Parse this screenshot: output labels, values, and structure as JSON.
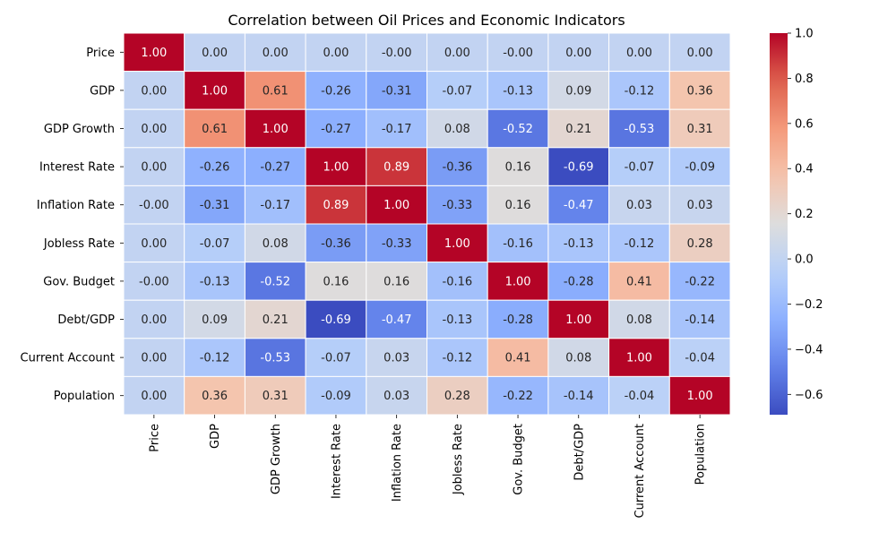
{
  "chart_data": {
    "type": "heatmap",
    "title": "Correlation between Oil Prices and Economic Indicators",
    "row_labels": [
      "Price",
      "GDP",
      "GDP Growth",
      "Interest Rate",
      "Inflation Rate",
      "Jobless Rate",
      "Gov. Budget",
      "Debt/GDP",
      "Current Account",
      "Population"
    ],
    "col_labels": [
      "Price",
      "GDP",
      "GDP Growth",
      "Interest Rate",
      "Inflation Rate",
      "Jobless Rate",
      "Gov. Budget",
      "Debt/GDP",
      "Current Account",
      "Population"
    ],
    "values": [
      [
        1.0,
        0.0,
        0.0,
        0.0,
        -0.0,
        0.0,
        -0.0,
        0.0,
        0.0,
        0.0
      ],
      [
        0.0,
        1.0,
        0.61,
        -0.26,
        -0.31,
        -0.07,
        -0.13,
        0.09,
        -0.12,
        0.36
      ],
      [
        0.0,
        0.61,
        1.0,
        -0.27,
        -0.17,
        0.08,
        -0.52,
        0.21,
        -0.53,
        0.31
      ],
      [
        0.0,
        -0.26,
        -0.27,
        1.0,
        0.89,
        -0.36,
        0.16,
        -0.69,
        -0.07,
        -0.09
      ],
      [
        -0.0,
        -0.31,
        -0.17,
        0.89,
        1.0,
        -0.33,
        0.16,
        -0.47,
        0.03,
        0.03
      ],
      [
        0.0,
        -0.07,
        0.08,
        -0.36,
        -0.33,
        1.0,
        -0.16,
        -0.13,
        -0.12,
        0.28
      ],
      [
        -0.0,
        -0.13,
        -0.52,
        0.16,
        0.16,
        -0.16,
        1.0,
        -0.28,
        0.41,
        -0.22
      ],
      [
        0.0,
        0.09,
        0.21,
        -0.69,
        -0.47,
        -0.13,
        -0.28,
        1.0,
        0.08,
        -0.14
      ],
      [
        0.0,
        -0.12,
        -0.53,
        -0.07,
        0.03,
        -0.12,
        0.41,
        0.08,
        1.0,
        -0.04
      ],
      [
        0.0,
        0.36,
        0.31,
        -0.09,
        0.03,
        0.28,
        -0.22,
        -0.14,
        -0.04,
        1.0
      ]
    ],
    "value_labels": [
      [
        "1.00",
        "0.00",
        "0.00",
        "0.00",
        "-0.00",
        "0.00",
        "-0.00",
        "0.00",
        "0.00",
        "0.00"
      ],
      [
        "0.00",
        "1.00",
        "0.61",
        "-0.26",
        "-0.31",
        "-0.07",
        "-0.13",
        "0.09",
        "-0.12",
        "0.36"
      ],
      [
        "0.00",
        "0.61",
        "1.00",
        "-0.27",
        "-0.17",
        "0.08",
        "-0.52",
        "0.21",
        "-0.53",
        "0.31"
      ],
      [
        "0.00",
        "-0.26",
        "-0.27",
        "1.00",
        "0.89",
        "-0.36",
        "0.16",
        "-0.69",
        "-0.07",
        "-0.09"
      ],
      [
        "-0.00",
        "-0.31",
        "-0.17",
        "0.89",
        "1.00",
        "-0.33",
        "0.16",
        "-0.47",
        "0.03",
        "0.03"
      ],
      [
        "0.00",
        "-0.07",
        "0.08",
        "-0.36",
        "-0.33",
        "1.00",
        "-0.16",
        "-0.13",
        "-0.12",
        "0.28"
      ],
      [
        "-0.00",
        "-0.13",
        "-0.52",
        "0.16",
        "0.16",
        "-0.16",
        "1.00",
        "-0.28",
        "0.41",
        "-0.22"
      ],
      [
        "0.00",
        "0.09",
        "0.21",
        "-0.69",
        "-0.47",
        "-0.13",
        "-0.28",
        "1.00",
        "0.08",
        "-0.14"
      ],
      [
        "0.00",
        "-0.12",
        "-0.53",
        "-0.07",
        "0.03",
        "-0.12",
        "0.41",
        "0.08",
        "1.00",
        "-0.04"
      ],
      [
        "0.00",
        "0.36",
        "0.31",
        "-0.09",
        "0.03",
        "0.28",
        "-0.22",
        "-0.14",
        "-0.04",
        "1.00"
      ]
    ],
    "colormap": "coolwarm",
    "colorbar": {
      "range": [
        -0.69,
        1.0
      ],
      "ticks": [
        -0.6,
        -0.4,
        -0.2,
        0.0,
        0.2,
        0.4,
        0.6,
        0.8,
        1.0
      ],
      "tick_labels": [
        "−0.6",
        "−0.4",
        "−0.2",
        "0.0",
        "0.2",
        "0.4",
        "0.6",
        "0.8",
        "1.0"
      ]
    },
    "grid": false,
    "cell_borders": true
  }
}
